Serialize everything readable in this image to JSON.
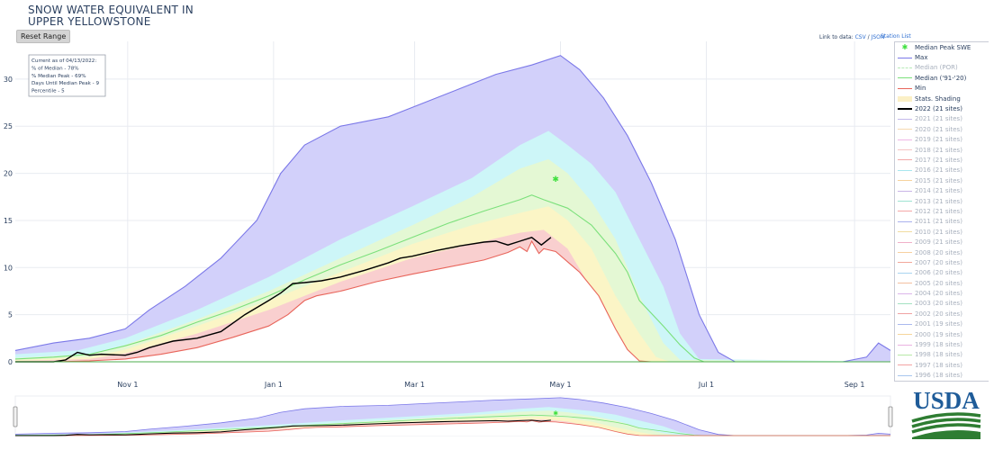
{
  "header": {
    "title_line1": "SNOW WATER EQUIVALENT IN",
    "title_line2": "UPPER YELLOWSTONE",
    "reset_label": "Reset Range",
    "link_prefix": "Link to data:",
    "link_csv": "CSV",
    "link_sep": " / ",
    "link_json": "JSON",
    "station_list": "Station List"
  },
  "info_box": [
    "Current as of 04/13/2022:",
    "% of Median - 78%",
    "% Median Peak - 69%",
    "Days Until Median Peak - 9",
    "Percentile - 5"
  ],
  "logo": {
    "text": "USDA",
    "color": "#1f5c99",
    "stripe_color": "#2e7d32"
  },
  "colors": {
    "max": "#7b78e8",
    "max_fill": "#d2d0fa",
    "p90_fill": "#cdf6f8",
    "p70_fill": "#e4f8d4",
    "p50_fill": "#fbf5c6",
    "p30_fill": "#f9cfcf",
    "median": "#7be07b",
    "min": "#e8645a",
    "current": "#000000",
    "peak": "#3ee03e",
    "axis_text": "#2a3f5f",
    "grid": "#e8ebf1"
  },
  "chart_data": {
    "type": "area",
    "title": "SNOW WATER EQUIVALENT IN UPPER YELLOWSTONE",
    "xlabel": "",
    "ylabel": "",
    "ylim": [
      0,
      34
    ],
    "y_ticks": [
      0,
      5,
      10,
      15,
      20,
      25,
      30
    ],
    "x_unit": "days since Oct 1",
    "xlim": [
      -16,
      350
    ],
    "x_ticks": [
      {
        "label": "Nov 1",
        "x": 31
      },
      {
        "label": "Jan 1",
        "x": 92
      },
      {
        "label": "Mar 1",
        "x": 151
      },
      {
        "label": "May 1",
        "x": 212
      },
      {
        "label": "Jul 1",
        "x": 273
      },
      {
        "label": "Sep 1",
        "x": 335
      }
    ],
    "max": [
      [
        -16,
        1.2
      ],
      [
        0,
        2.0
      ],
      [
        15,
        2.5
      ],
      [
        30,
        3.5
      ],
      [
        40,
        5.5
      ],
      [
        55,
        8
      ],
      [
        70,
        11
      ],
      [
        85,
        15
      ],
      [
        95,
        20
      ],
      [
        105,
        23
      ],
      [
        120,
        25
      ],
      [
        140,
        26
      ],
      [
        155,
        27.5
      ],
      [
        170,
        29
      ],
      [
        185,
        30.5
      ],
      [
        200,
        31.5
      ],
      [
        212,
        32.5
      ],
      [
        220,
        31
      ],
      [
        230,
        28
      ],
      [
        240,
        24
      ],
      [
        250,
        19
      ],
      [
        260,
        13
      ],
      [
        270,
        5
      ],
      [
        278,
        1
      ],
      [
        285,
        0
      ],
      [
        330,
        0
      ],
      [
        340,
        0.5
      ],
      [
        345,
        2
      ],
      [
        350,
        1.2
      ]
    ],
    "p90": [
      [
        -16,
        0.8
      ],
      [
        10,
        1.2
      ],
      [
        30,
        2.5
      ],
      [
        60,
        5.5
      ],
      [
        90,
        9
      ],
      [
        120,
        13
      ],
      [
        150,
        16.5
      ],
      [
        175,
        19.5
      ],
      [
        195,
        23
      ],
      [
        207,
        24.5
      ],
      [
        215,
        23
      ],
      [
        225,
        21
      ],
      [
        235,
        18
      ],
      [
        245,
        13
      ],
      [
        255,
        8
      ],
      [
        262,
        3
      ],
      [
        270,
        0.3
      ],
      [
        350,
        0
      ]
    ],
    "p70": [
      [
        -16,
        0.4
      ],
      [
        15,
        0.8
      ],
      [
        30,
        1.8
      ],
      [
        60,
        4.5
      ],
      [
        90,
        7.5
      ],
      [
        120,
        11
      ],
      [
        150,
        14.5
      ],
      [
        175,
        17.5
      ],
      [
        195,
        20.5
      ],
      [
        207,
        21.5
      ],
      [
        215,
        20
      ],
      [
        225,
        17
      ],
      [
        235,
        13
      ],
      [
        245,
        7
      ],
      [
        255,
        2
      ],
      [
        262,
        0.2
      ],
      [
        350,
        0
      ]
    ],
    "p50": [
      [
        -16,
        0.2
      ],
      [
        15,
        0.5
      ],
      [
        30,
        1.3
      ],
      [
        60,
        3.8
      ],
      [
        90,
        6.5
      ],
      [
        120,
        9.5
      ],
      [
        150,
        12.5
      ],
      [
        175,
        14.5
      ],
      [
        195,
        15.8
      ],
      [
        207,
        16.5
      ],
      [
        215,
        15
      ],
      [
        225,
        12
      ],
      [
        235,
        7
      ],
      [
        245,
        3
      ],
      [
        252,
        0.5
      ],
      [
        258,
        0
      ],
      [
        350,
        0
      ]
    ],
    "p30": [
      [
        -16,
        0.1
      ],
      [
        15,
        0.3
      ],
      [
        30,
        0.9
      ],
      [
        60,
        3.0
      ],
      [
        90,
        5.5
      ],
      [
        120,
        8.5
      ],
      [
        150,
        11
      ],
      [
        175,
        12.5
      ],
      [
        195,
        13.7
      ],
      [
        205,
        14
      ],
      [
        215,
        12
      ],
      [
        222,
        9
      ],
      [
        230,
        5
      ],
      [
        238,
        1.5
      ],
      [
        245,
        0
      ],
      [
        350,
        0
      ]
    ],
    "median": [
      [
        -16,
        0.3
      ],
      [
        0,
        0.5
      ],
      [
        15,
        0.8
      ],
      [
        30,
        1.7
      ],
      [
        45,
        2.8
      ],
      [
        60,
        4.2
      ],
      [
        75,
        5.5
      ],
      [
        90,
        7
      ],
      [
        105,
        8.7
      ],
      [
        120,
        10.3
      ],
      [
        135,
        11.7
      ],
      [
        150,
        13.2
      ],
      [
        165,
        14.7
      ],
      [
        180,
        16
      ],
      [
        195,
        17.2
      ],
      [
        200,
        17.7
      ],
      [
        205,
        17.2
      ],
      [
        215,
        16.3
      ],
      [
        225,
        14.5
      ],
      [
        235,
        11.5
      ],
      [
        240,
        9.5
      ],
      [
        245,
        6.5
      ],
      [
        255,
        3.8
      ],
      [
        262,
        1.8
      ],
      [
        268,
        0.4
      ],
      [
        272,
        0
      ],
      [
        350,
        0
      ]
    ],
    "min": [
      [
        -16,
        0
      ],
      [
        0,
        0
      ],
      [
        15,
        0.1
      ],
      [
        30,
        0.3
      ],
      [
        45,
        0.8
      ],
      [
        60,
        1.5
      ],
      [
        75,
        2.6
      ],
      [
        90,
        3.8
      ],
      [
        98,
        5
      ],
      [
        105,
        6.5
      ],
      [
        110,
        7
      ],
      [
        120,
        7.5
      ],
      [
        135,
        8.5
      ],
      [
        150,
        9.3
      ],
      [
        160,
        9.8
      ],
      [
        170,
        10.3
      ],
      [
        180,
        10.8
      ],
      [
        190,
        11.6
      ],
      [
        195,
        12.2
      ],
      [
        198,
        11.7
      ],
      [
        200,
        12.8
      ],
      [
        203,
        11.5
      ],
      [
        205,
        12
      ],
      [
        210,
        11.7
      ],
      [
        220,
        9.5
      ],
      [
        228,
        7
      ],
      [
        235,
        3.5
      ],
      [
        240,
        1.3
      ],
      [
        245,
        0.1
      ],
      [
        250,
        0
      ],
      [
        350,
        0
      ]
    ],
    "current": [
      [
        -16,
        0
      ],
      [
        0,
        0
      ],
      [
        5,
        0.2
      ],
      [
        10,
        1.0
      ],
      [
        15,
        0.7
      ],
      [
        20,
        0.8
      ],
      [
        30,
        0.7
      ],
      [
        35,
        1.0
      ],
      [
        40,
        1.5
      ],
      [
        50,
        2.2
      ],
      [
        60,
        2.5
      ],
      [
        70,
        3.2
      ],
      [
        80,
        5.0
      ],
      [
        90,
        6.5
      ],
      [
        95,
        7.3
      ],
      [
        100,
        8.3
      ],
      [
        105,
        8.4
      ],
      [
        112,
        8.6
      ],
      [
        120,
        9.0
      ],
      [
        130,
        9.7
      ],
      [
        140,
        10.5
      ],
      [
        145,
        11.0
      ],
      [
        150,
        11.2
      ],
      [
        160,
        11.8
      ],
      [
        170,
        12.3
      ],
      [
        180,
        12.7
      ],
      [
        185,
        12.8
      ],
      [
        190,
        12.4
      ],
      [
        195,
        12.8
      ],
      [
        200,
        13.2
      ],
      [
        204,
        12.4
      ],
      [
        208,
        13.2
      ]
    ],
    "median_peak": {
      "x": 210,
      "y": 19.4
    },
    "legend": [
      {
        "name": "Median Peak SWE",
        "kind": "marker",
        "color": "#3ee03e"
      },
      {
        "name": "Max",
        "kind": "line",
        "color": "#7b78e8"
      },
      {
        "name": "Median (POR)",
        "kind": "dash",
        "color": "#b6eab6",
        "dim": true
      },
      {
        "name": "Median ('91-'20)",
        "kind": "line",
        "color": "#7be07b"
      },
      {
        "name": "Min",
        "kind": "line",
        "color": "#e8645a"
      },
      {
        "name": "Stats. Shading",
        "kind": "fill",
        "color": "#fbf0c6"
      },
      {
        "name": "2022 (21 sites)",
        "kind": "thick",
        "color": "#000000"
      },
      {
        "name": "2021 (21 sites)",
        "kind": "line",
        "color": "#c3b8ea",
        "dim": true
      },
      {
        "name": "2020 (21 sites)",
        "kind": "line",
        "color": "#f6d9b0",
        "dim": true
      },
      {
        "name": "2019 (21 sites)",
        "kind": "line",
        "color": "#efb7e6",
        "dim": true
      },
      {
        "name": "2018 (21 sites)",
        "kind": "line",
        "color": "#f5c5c5",
        "dim": true
      },
      {
        "name": "2017 (21 sites)",
        "kind": "line",
        "color": "#f2a8a8",
        "dim": true
      },
      {
        "name": "2016 (21 sites)",
        "kind": "line",
        "color": "#a8e7ee",
        "dim": true
      },
      {
        "name": "2015 (21 sites)",
        "kind": "line",
        "color": "#f6d39d",
        "dim": true
      },
      {
        "name": "2014 (21 sites)",
        "kind": "line",
        "color": "#c9b4e7",
        "dim": true
      },
      {
        "name": "2013 (21 sites)",
        "kind": "line",
        "color": "#9ee3d2",
        "dim": true
      },
      {
        "name": "2012 (21 sites)",
        "kind": "line",
        "color": "#f4a6a6",
        "dim": true
      },
      {
        "name": "2011 (21 sites)",
        "kind": "line",
        "color": "#aab1ee",
        "dim": true
      },
      {
        "name": "2010 (21 sites)",
        "kind": "line",
        "color": "#f1dca0",
        "dim": true
      },
      {
        "name": "2009 (21 sites)",
        "kind": "line",
        "color": "#f0b0c8",
        "dim": true
      },
      {
        "name": "2008 (20 sites)",
        "kind": "line",
        "color": "#f7d0a0",
        "dim": true
      },
      {
        "name": "2007 (20 sites)",
        "kind": "line",
        "color": "#f2a79a",
        "dim": true
      },
      {
        "name": "2006 (20 sites)",
        "kind": "line",
        "color": "#a9d4f0",
        "dim": true
      },
      {
        "name": "2005 (20 sites)",
        "kind": "line",
        "color": "#f3bfa0",
        "dim": true
      },
      {
        "name": "2004 (20 sites)",
        "kind": "line",
        "color": "#dcb6ea",
        "dim": true
      },
      {
        "name": "2003 (20 sites)",
        "kind": "line",
        "color": "#a4e2c2",
        "dim": true
      },
      {
        "name": "2002 (20 sites)",
        "kind": "line",
        "color": "#f0a3a3",
        "dim": true
      },
      {
        "name": "2001 (19 sites)",
        "kind": "line",
        "color": "#a9b9ee",
        "dim": true
      },
      {
        "name": "2000 (19 sites)",
        "kind": "line",
        "color": "#f6d59a",
        "dim": true
      },
      {
        "name": "1999 (18 sites)",
        "kind": "line",
        "color": "#eab2e1",
        "dim": true
      },
      {
        "name": "1998 (18 sites)",
        "kind": "line",
        "color": "#b6e8a6",
        "dim": true
      },
      {
        "name": "1997 (18 sites)",
        "kind": "line",
        "color": "#f3a3a3",
        "dim": true
      },
      {
        "name": "1996 (18 sites)",
        "kind": "line",
        "color": "#a8c6ee",
        "dim": true
      }
    ]
  }
}
